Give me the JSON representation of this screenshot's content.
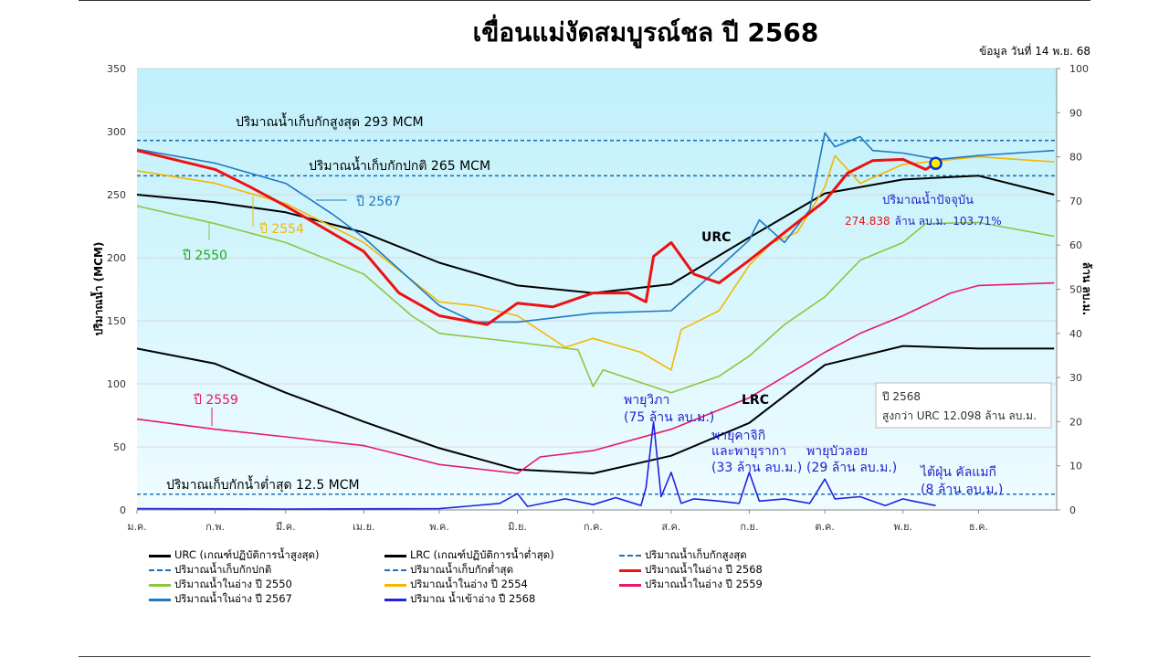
{
  "title": "เขื่อนแม่งัดสมบูรณ์ชล ปี 2568",
  "date_label": "ข้อมูล วันที่ 14 พ.ย. 68",
  "chart_data": {
    "type": "line",
    "ylabel": "ปริมาณน้ำ (MCM)",
    "y2label": "ล้าน ลบ.ม.",
    "ylim": [
      0,
      350
    ],
    "y2lim": [
      0,
      100
    ],
    "yticks": [
      0,
      50,
      100,
      150,
      200,
      250,
      300,
      350
    ],
    "y2ticks": [
      0,
      10,
      20,
      30,
      40,
      50,
      60,
      70,
      80,
      90,
      100
    ],
    "xticks": [
      "ม.ค.",
      "ก.พ.",
      "มี.ค.",
      "เม.ย.",
      "พ.ค.",
      "มิ.ย.",
      "ก.ค.",
      "ส.ค.",
      "ก.ย.",
      "ต.ค.",
      "พ.ย.",
      "ธ.ค."
    ],
    "grid": true,
    "hlines": [
      {
        "value": 293,
        "label": "ปริมาณน้ำเก็บกักสูงสุด 293 MCM",
        "color": "#1f6fb5"
      },
      {
        "value": 265,
        "label": "ปริมาณน้ำเก็บกักปกติ 265 MCM",
        "color": "#1f6fb5"
      },
      {
        "value": 12.5,
        "label": "ปริมาณเก็บกักน้ำต่ำสุด 12.5 MCM",
        "color": "#1f6fb5"
      }
    ],
    "series": [
      {
        "name": "URC (เกณฑ์ปฏิบัติการน้ำสูงสุด)",
        "color": "#000000",
        "axis": "left",
        "x": [
          "01/01",
          "01/02",
          "01/03",
          "01/04",
          "01/05",
          "01/06",
          "01/07",
          "01/08",
          "01/09",
          "01/10",
          "01/11",
          "01/12",
          "31/12"
        ],
        "y": [
          250,
          244,
          236,
          220,
          196,
          178,
          172,
          179,
          216,
          251,
          262,
          265,
          250
        ]
      },
      {
        "name": "LRC (เกณฑ์ปฏิบัติการน้ำต่ำสุด)",
        "color": "#000000",
        "axis": "left",
        "x": [
          "01/01",
          "01/02",
          "01/03",
          "01/04",
          "01/05",
          "01/06",
          "01/07",
          "01/08",
          "01/09",
          "01/10",
          "01/11",
          "01/12",
          "31/12"
        ],
        "y": [
          128,
          116,
          93,
          70,
          49,
          32,
          29,
          43,
          69,
          115,
          130,
          128,
          128
        ]
      },
      {
        "name": "ปริมาณน้ำในอ่าง ปี 2550",
        "color": "#8dc63f",
        "axis": "left",
        "x": [
          "01/01",
          "01/02",
          "01/03",
          "01/04",
          "20/04",
          "01/05",
          "01/06",
          "25/06",
          "01/07",
          "05/07",
          "01/08",
          "20/08",
          "01/09",
          "15/09",
          "01/10",
          "15/10",
          "01/11",
          "10/11",
          "01/12",
          "31/12"
        ],
        "y": [
          241,
          227,
          212,
          187,
          154,
          140,
          133,
          127,
          98,
          111,
          93,
          106,
          122,
          147,
          169,
          198,
          212,
          227,
          228,
          217
        ]
      },
      {
        "name": "ปริมาณน้ำในอ่าง ปี 2554",
        "color": "#f5b700",
        "axis": "left",
        "x": [
          "01/01",
          "01/02",
          "01/03",
          "01/04",
          "01/05",
          "15/05",
          "01/06",
          "20/06",
          "01/07",
          "20/07",
          "01/08",
          "05/08",
          "20/08",
          "01/09",
          "10/09",
          "20/09",
          "01/10",
          "05/10",
          "15/10",
          "01/11",
          "01/12",
          "31/12"
        ],
        "y": [
          269,
          259,
          243,
          212,
          165,
          162,
          154,
          129,
          136,
          125,
          111,
          143,
          158,
          194,
          212,
          220,
          256,
          281,
          259,
          274,
          280,
          276
        ]
      },
      {
        "name": "ปริมาณน้ำในอ่าง ปี 2559",
        "color": "#e8176e",
        "axis": "left",
        "x": [
          "01/01",
          "01/02",
          "01/03",
          "01/04",
          "01/05",
          "01/06",
          "10/06",
          "01/07",
          "01/08",
          "01/09",
          "01/10",
          "15/10",
          "01/11",
          "20/11",
          "01/12",
          "31/12"
        ],
        "y": [
          72,
          64,
          58,
          51,
          36,
          29,
          42,
          47,
          64,
          89,
          125,
          140,
          154,
          172,
          178,
          180
        ]
      },
      {
        "name": "ปริมาณน้ำในอ่าง ปี 2567",
        "color": "#1f78c1",
        "axis": "left",
        "x": [
          "01/01",
          "01/02",
          "01/03",
          "20/03",
          "01/04",
          "01/05",
          "15/05",
          "01/06",
          "01/07",
          "01/08",
          "15/08",
          "01/09",
          "05/09",
          "15/09",
          "25/09",
          "01/10",
          "05/10",
          "15/10",
          "20/10",
          "01/11",
          "15/11",
          "01/12",
          "31/12"
        ],
        "y": [
          286,
          275,
          259,
          234,
          216,
          162,
          149,
          149,
          156,
          158,
          183,
          214,
          230,
          212,
          238,
          299,
          288,
          296,
          285,
          283,
          278,
          281,
          285
        ]
      },
      {
        "name": "ปริมาณน้ำในอ่าง ปี 2568",
        "color": "#ee1111",
        "axis": "left",
        "x": [
          "01/01",
          "01/02",
          "15/02",
          "01/03",
          "01/04",
          "15/04",
          "01/05",
          "20/05",
          "01/06",
          "15/06",
          "01/07",
          "15/07",
          "22/07",
          "25/07",
          "01/08",
          "10/08",
          "20/08",
          "01/09",
          "15/09",
          "01/10",
          "10/10",
          "20/10",
          "01/11",
          "10/11",
          "14/11"
        ],
        "y": [
          285,
          270,
          256,
          241,
          205,
          172,
          154,
          147,
          164,
          161,
          172,
          172,
          165,
          201,
          212,
          187,
          180,
          198,
          220,
          245,
          267,
          277,
          278,
          270,
          275
        ]
      },
      {
        "name": "ปริมาณ น้ำเข้าอ่าง ปี 2568",
        "color": "#2222dd",
        "axis": "right",
        "x": [
          "01/01",
          "01/03",
          "01/05",
          "25/05",
          "01/06",
          "05/06",
          "20/06",
          "01/07",
          "10/07",
          "20/07",
          "22/07",
          "25/07",
          "28/07",
          "01/08",
          "05/08",
          "10/08",
          "20/08",
          "28/08",
          "01/09",
          "05/09",
          "15/09",
          "25/09",
          "01/10",
          "05/10",
          "15/10",
          "25/10",
          "01/11",
          "05/11",
          "14/11"
        ],
        "y": [
          0.3,
          0.2,
          0.3,
          1.5,
          3.7,
          0.8,
          2.5,
          1.2,
          2.8,
          1,
          5,
          20,
          3,
          8.5,
          1.5,
          2.5,
          2,
          1.5,
          8.5,
          2,
          2.5,
          1.5,
          7,
          2.5,
          3,
          1,
          2.5,
          2,
          1
        ]
      }
    ],
    "current": {
      "date": "14/11",
      "value": 274.838,
      "heading": "ปริมาณน้ำปัจจุบัน",
      "value_text": "274.838",
      "unit_text": "ล้าน ลบ.ม.",
      "percent": "103.71%"
    },
    "annotations": {
      "urc": "URC",
      "lrc": "LRC",
      "y2567": "ปี 2567",
      "y2554": "ปี 2554",
      "y2550": "ปี 2550",
      "y2559": "ปี 2559",
      "storm1": [
        "พายุวิภา",
        "(75 ล้าน ลบ.ม.)"
      ],
      "storm2": [
        "พายุคาจิกิ",
        "และพายุรากา",
        "(33 ล้าน ลบ.ม.)"
      ],
      "storm3": [
        "พายุบัวลอย",
        "(29 ล้าน ลบ.ม.)"
      ],
      "storm4": [
        "ไต้ฝุ่น คัลแมกี",
        "(8 ล้าน ลบ.ม.)"
      ],
      "box": [
        "ปี 2568",
        "สูงกว่า URC 12.098 ล้าน ลบ.ม."
      ]
    },
    "legend": [
      {
        "label": "URC (เกณฑ์ปฏิบัติการน้ำสูงสุด)",
        "color": "#000000",
        "style": "solid"
      },
      {
        "label": "LRC (เกณฑ์ปฏิบัติการน้ำต่ำสุด)",
        "color": "#000000",
        "style": "solid"
      },
      {
        "label": "ปริมาณน้ำเก็บกักสูงสุด",
        "color": "#1f6fb5",
        "style": "dashed"
      },
      {
        "label": "ปริมาณน้ำเก็บกักปกติ",
        "color": "#1f6fb5",
        "style": "dashed"
      },
      {
        "label": "ปริมาณน้ำเก็บกักต่ำสุด",
        "color": "#1f6fb5",
        "style": "dashed"
      },
      {
        "label": "ปริมาณน้ำในอ่าง ปี 2568",
        "color": "#ee1111",
        "style": "solid"
      },
      {
        "label": "ปริมาณน้ำในอ่าง ปี 2550",
        "color": "#8dc63f",
        "style": "solid"
      },
      {
        "label": "ปริมาณน้ำในอ่าง ปี 2554",
        "color": "#f5b700",
        "style": "solid"
      },
      {
        "label": "ปริมาณน้ำในอ่าง ปี 2559",
        "color": "#e8176e",
        "style": "solid"
      },
      {
        "label": "ปริมาณน้ำในอ่าง ปี 2567",
        "color": "#1f78c1",
        "style": "solid"
      },
      {
        "label": "ปริมาณ น้ำเข้าอ่าง ปี 2568",
        "color": "#2222dd",
        "style": "solid"
      }
    ]
  }
}
